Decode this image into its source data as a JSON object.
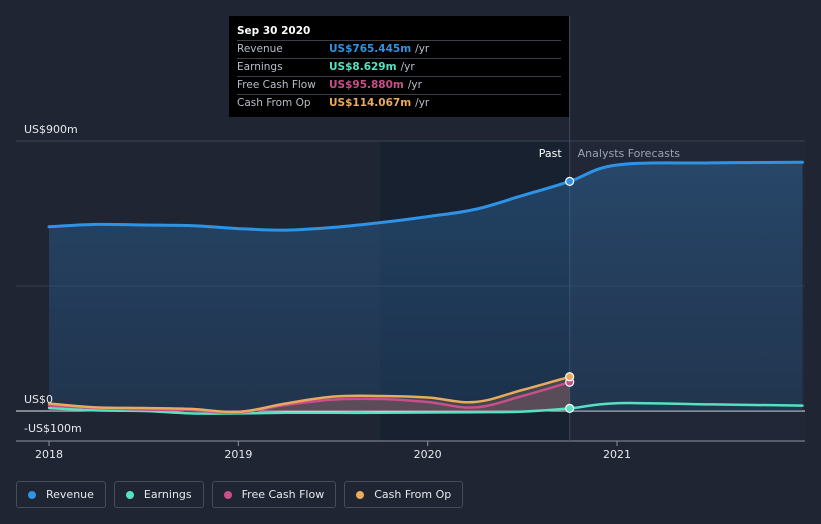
{
  "chart_data": {
    "type": "area",
    "y_unit": "US$m",
    "ylim": [
      -100,
      900
    ],
    "y_tick_labels": [
      {
        "value": 900,
        "label": "US$900m"
      },
      {
        "value": 0,
        "label": "US$0"
      },
      {
        "value": -100,
        "label": "-US$100m"
      }
    ],
    "x_tick_labels": [
      {
        "value": 2018.0,
        "label": "2018"
      },
      {
        "value": 2019.0,
        "label": "2019"
      },
      {
        "value": 2020.0,
        "label": "2020"
      },
      {
        "value": 2021.0,
        "label": "2021"
      }
    ],
    "xlim": [
      2017.84,
      2021.98
    ],
    "past_label": "Past",
    "forecast_label": "Analysts Forecasts",
    "highlight_x": 2020.75,
    "shaded_region_start": 2019.75,
    "series": [
      {
        "name": "Revenue",
        "color": "#2e93e4",
        "x": [
          2018.0,
          2018.25,
          2018.5,
          2018.75,
          2019.0,
          2019.25,
          2019.5,
          2019.75,
          2020.0,
          2020.25,
          2020.5,
          2020.75,
          2021.0,
          2021.5,
          2021.98
        ],
        "values": [
          614,
          622,
          620,
          618,
          608,
          603,
          612,
          628,
          648,
          672,
          718,
          765.445,
          820,
          827,
          829
        ]
      },
      {
        "name": "Earnings",
        "color": "#58e1c1",
        "x": [
          2018.0,
          2018.25,
          2018.5,
          2018.75,
          2019.0,
          2019.25,
          2019.5,
          2019.75,
          2020.0,
          2020.25,
          2020.5,
          2020.75,
          2021.0,
          2021.5,
          2021.98
        ],
        "values": [
          10,
          2,
          0,
          -8,
          -8,
          -6,
          -6,
          -6,
          -5,
          -4,
          -2,
          8.629,
          26,
          22,
          18
        ]
      },
      {
        "name": "Free Cash Flow",
        "color": "#c94f8a",
        "x": [
          2018.0,
          2018.25,
          2018.5,
          2018.75,
          2019.0,
          2019.25,
          2019.5,
          2019.75,
          2020.0,
          2020.25,
          2020.5,
          2020.75
        ],
        "values": [
          18,
          10,
          5,
          2,
          -5,
          20,
          38,
          40,
          30,
          12,
          50,
          95.88
        ]
      },
      {
        "name": "Cash From Op",
        "color": "#e8aa5c",
        "x": [
          2018.0,
          2018.25,
          2018.5,
          2018.75,
          2019.0,
          2019.25,
          2019.5,
          2019.75,
          2020.0,
          2020.25,
          2020.5,
          2020.75
        ],
        "values": [
          25,
          12,
          10,
          7,
          -3,
          25,
          48,
          50,
          45,
          30,
          70,
          114.067
        ]
      }
    ]
  },
  "tooltip": {
    "date": "Sep 30 2020",
    "rows": [
      {
        "label": "Revenue",
        "value": "US$765.445m",
        "unit": "/yr",
        "color": "#2e93e4"
      },
      {
        "label": "Earnings",
        "value": "US$8.629m",
        "unit": "/yr",
        "color": "#58e1c1"
      },
      {
        "label": "Free Cash Flow",
        "value": "US$95.880m",
        "unit": "/yr",
        "color": "#c94f8a"
      },
      {
        "label": "Cash From Op",
        "value": "US$114.067m",
        "unit": "/yr",
        "color": "#e8aa5c"
      }
    ]
  },
  "legend": [
    {
      "label": "Revenue",
      "color": "#2e93e4"
    },
    {
      "label": "Earnings",
      "color": "#58e1c1"
    },
    {
      "label": "Free Cash Flow",
      "color": "#c94f8a"
    },
    {
      "label": "Cash From Op",
      "color": "#e8aa5c"
    }
  ]
}
